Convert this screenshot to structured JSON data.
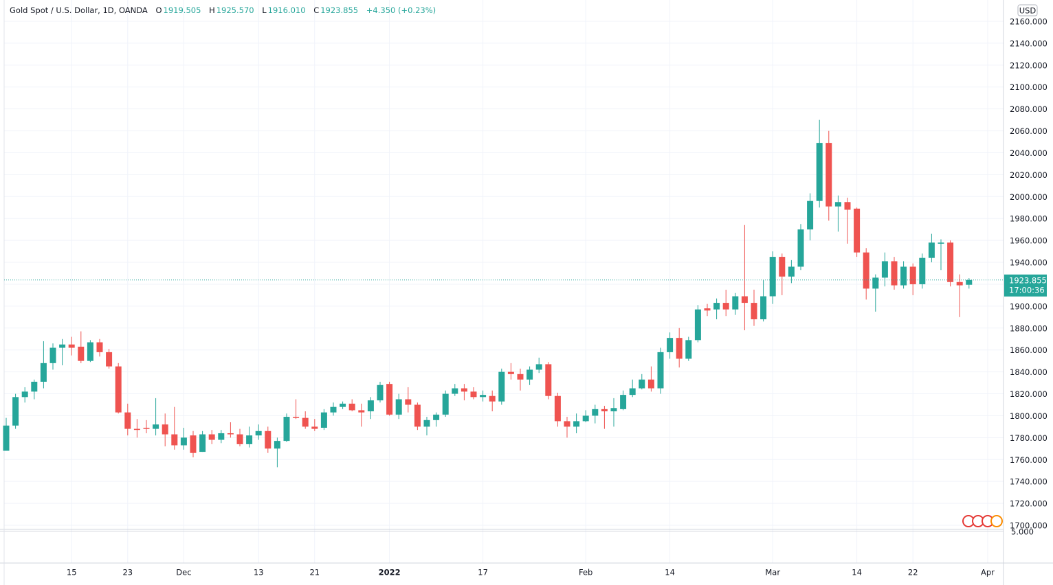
{
  "chart_data": {
    "type": "candlestick",
    "title": "Gold Spot / U.S. Dollar, 1D, OANDA",
    "header_letters": {
      "open": "O",
      "high": "H",
      "low": "L",
      "close": "C"
    },
    "last_bar_labels": {
      "open": "1919.505",
      "high": "1925.570",
      "low": "1916.010",
      "close": "1923.855"
    },
    "change_label": "+4.350 (+0.23%)",
    "currency": "USD",
    "countdown": "17:00:36",
    "up_color": "#26a69a",
    "down_color": "#ef5350",
    "grid": true,
    "categories": [
      null,
      null,
      null,
      null,
      null,
      null,
      null,
      "15",
      null,
      null,
      null,
      null,
      null,
      "23",
      null,
      null,
      null,
      null,
      null,
      "Dec",
      null,
      null,
      null,
      null,
      null,
      null,
      null,
      "13",
      null,
      null,
      null,
      null,
      null,
      "21",
      null,
      null,
      null,
      null,
      null,
      null,
      null,
      "2022",
      null,
      null,
      null,
      null,
      null,
      null,
      null,
      null,
      null,
      "17",
      null,
      null,
      null,
      null,
      null,
      null,
      null,
      null,
      null,
      null,
      "Feb",
      null,
      null,
      null,
      null,
      null,
      null,
      null,
      null,
      "14",
      null,
      null,
      null,
      null,
      null,
      null,
      null,
      null,
      null,
      null,
      "Mar",
      null,
      null,
      null,
      null,
      null,
      null,
      null,
      null,
      "14",
      null,
      null,
      null,
      null,
      null,
      "22",
      null,
      null,
      null,
      null,
      null,
      null,
      null,
      "Apr"
    ],
    "open": [
      1768,
      1791,
      1817,
      1822,
      1831,
      1848,
      1862,
      1865,
      1863,
      1850,
      1867,
      1858,
      1845,
      1803,
      1788,
      1789,
      1788,
      1792,
      1783,
      1773,
      1782,
      1767,
      1783,
      1778,
      1784,
      1783,
      1774,
      1782,
      1786,
      1770,
      1777,
      1799,
      1798,
      1790,
      1789,
      1803,
      1808,
      1811,
      1805,
      1804,
      1814,
      1829,
      1801,
      1815,
      1810,
      1790,
      1796,
      1801,
      1820,
      1825,
      1822,
      1817,
      1818,
      1813,
      1840,
      1838,
      1833,
      1842,
      1847,
      1818,
      1795,
      1790,
      1795,
      1800,
      1806,
      1804,
      1806,
      1819,
      1825,
      1833,
      1825,
      1858,
      1871,
      1852,
      1869,
      1898,
      1897,
      1903,
      1897,
      1909,
      1903,
      1888,
      1909,
      1945,
      1927,
      1936,
      1970,
      1996,
      2049,
      1991,
      1995,
      1989,
      1949,
      1916,
      1926,
      1941,
      1919,
      1936,
      1920,
      1944,
      1957,
      1958,
      1922,
      1919.505,
      null,
      null
    ],
    "high": [
      1798,
      1820,
      1826,
      1833,
      1868,
      1866,
      1870,
      1872,
      1877,
      1869,
      1870,
      1861,
      1848,
      1811,
      1797,
      1796,
      1816,
      1802,
      1808,
      1789,
      1786,
      1786,
      1787,
      1787,
      1794,
      1788,
      1790,
      1792,
      1790,
      1780,
      1802,
      1815,
      1804,
      1797,
      1806,
      1812,
      1813,
      1815,
      1811,
      1817,
      1831,
      1831,
      1820,
      1826,
      1812,
      1799,
      1803,
      1823,
      1829,
      1829,
      1826,
      1823,
      1823,
      1843,
      1848,
      1843,
      1845,
      1853,
      1849,
      1821,
      1799,
      1802,
      1805,
      1810,
      1809,
      1816,
      1823,
      1833,
      1838,
      1845,
      1862,
      1876,
      1880,
      1872,
      1901,
      1902,
      1907,
      1915,
      1912,
      1974,
      1915,
      1924,
      1950,
      1948,
      1942,
      1975,
      2003,
      2070,
      2060,
      2001,
      1999,
      1990,
      1953,
      1929,
      1949,
      1945,
      1941,
      1939,
      1948,
      1966,
      1961,
      1960,
      1929,
      1925.57,
      null,
      null
    ],
    "low": [
      1768,
      1788,
      1812,
      1815,
      1825,
      1842,
      1846,
      1855,
      1848,
      1849,
      1854,
      1843,
      1802,
      1782,
      1780,
      1784,
      1782,
      1772,
      1769,
      1769,
      1762,
      1767,
      1774,
      1775,
      1780,
      1772,
      1771,
      1778,
      1766,
      1753,
      1776,
      1797,
      1788,
      1786,
      1787,
      1800,
      1806,
      1804,
      1790,
      1797,
      1812,
      1800,
      1797,
      1803,
      1787,
      1782,
      1790,
      1799,
      1818,
      1814,
      1815,
      1813,
      1804,
      1810,
      1833,
      1823,
      1828,
      1839,
      1815,
      1790,
      1780,
      1784,
      1794,
      1793,
      1788,
      1790,
      1805,
      1817,
      1824,
      1822,
      1820,
      1852,
      1844,
      1850,
      1867,
      1891,
      1888,
      1891,
      1892,
      1878,
      1882,
      1886,
      1902,
      1910,
      1921,
      1933,
      1960,
      1990,
      1978,
      1968,
      1957,
      1945,
      1906,
      1895,
      1918,
      1915,
      1916,
      1910,
      1916,
      1940,
      1933,
      1918,
      1890,
      1916.01,
      null,
      null
    ],
    "close": [
      1791,
      1817,
      1822,
      1831,
      1848,
      1862,
      1865,
      1862,
      1850,
      1867,
      1858,
      1845,
      1803,
      1788,
      1787,
      1788,
      1792,
      1783,
      1773,
      1780,
      1766,
      1783,
      1778,
      1784,
      1783,
      1774,
      1782,
      1786,
      1770,
      1777,
      1799,
      1798,
      1790,
      1788,
      1803,
      1808,
      1811,
      1805,
      1803,
      1814,
      1828,
      1801,
      1815,
      1810,
      1790,
      1796,
      1801,
      1820,
      1825,
      1822,
      1817,
      1819,
      1813,
      1840,
      1838,
      1833,
      1842,
      1847,
      1818,
      1795,
      1790,
      1795,
      1800,
      1806,
      1804,
      1807,
      1819,
      1825,
      1833,
      1825,
      1858,
      1871,
      1852,
      1869,
      1897,
      1896,
      1903,
      1897,
      1909,
      1903,
      1888,
      1909,
      1945,
      1927,
      1936,
      1970,
      1996,
      2049,
      1991,
      1995,
      1988,
      1949,
      1916,
      1926,
      1941,
      1919,
      1936,
      1920,
      1944,
      1958,
      1958,
      1922,
      1919,
      1923.855,
      null,
      null
    ],
    "ylim": [
      1700,
      2160
    ],
    "yticks": [
      {
        "value": 1700,
        "label": "1700.000"
      },
      {
        "value": 1720,
        "label": "1720.000"
      },
      {
        "value": 1740,
        "label": "1740.000"
      },
      {
        "value": 1760,
        "label": "1760.000"
      },
      {
        "value": 1780,
        "label": "1780.000"
      },
      {
        "value": 1800,
        "label": "1800.000"
      },
      {
        "value": 1820,
        "label": "1820.000"
      },
      {
        "value": 1840,
        "label": "1840.000"
      },
      {
        "value": 1860,
        "label": "1860.000"
      },
      {
        "value": 1880,
        "label": "1880.000"
      },
      {
        "value": 1900,
        "label": "1900.000"
      },
      {
        "value": 1920,
        "label": "1920.000"
      },
      {
        "value": 1940,
        "label": "1940.000"
      },
      {
        "value": 1960,
        "label": "1960.000"
      },
      {
        "value": 1980,
        "label": "1980.000"
      },
      {
        "value": 2000,
        "label": "2000.000"
      },
      {
        "value": 2020,
        "label": "2020.000"
      },
      {
        "value": 2040,
        "label": "2040.000"
      },
      {
        "value": 2060,
        "label": "2060.000"
      },
      {
        "value": 2080,
        "label": "2080.000"
      },
      {
        "value": 2100,
        "label": "2100.000"
      },
      {
        "value": 2120,
        "label": "2120.000"
      },
      {
        "value": 2140,
        "label": "2140.000"
      },
      {
        "value": 2160,
        "label": "2160.000"
      }
    ],
    "lower_pane_tick": {
      "value": 5,
      "label": "5.000"
    }
  }
}
